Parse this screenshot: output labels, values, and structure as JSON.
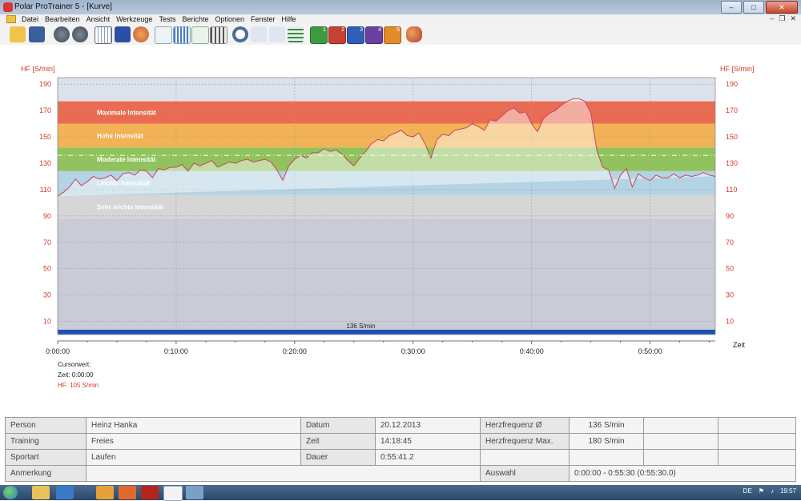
{
  "window": {
    "title": "Polar ProTrainer 5 - [Kurve]"
  },
  "window_controls": {
    "minimize": "–",
    "maximize": "□",
    "close": "✕"
  },
  "menu": [
    "Datei",
    "Bearbeiten",
    "Ansicht",
    "Werkzeuge",
    "Tests",
    "Berichte",
    "Optionen",
    "Fenster",
    "Hilfe"
  ],
  "mdi_controls": {
    "minimize": "–",
    "restore": "❐",
    "close": "✕"
  },
  "toolbar": {
    "icons": [
      "open-folder-icon",
      "save-icon",
      "connect-icon",
      "sync-icon",
      "calendar-icon",
      "book-icon",
      "user-icon",
      "curve-icon",
      "bar-chart-icon",
      "percent-icon",
      "columns-icon",
      "zoom-icon",
      "scale-icon",
      "marker-icon",
      "laps-icon",
      "report-1-icon",
      "report-2-icon",
      "report-3-icon",
      "report-4-icon",
      "report-5-icon",
      "people-icon"
    ],
    "report_numbers": [
      "1",
      "2",
      "3",
      "4",
      "5"
    ]
  },
  "chart_data": {
    "type": "area",
    "y_axis_label_left": "HF [S/min]",
    "y_axis_label_right": "HF [S/min]",
    "x_axis_label": "Zeit",
    "y_ticks": [
      10,
      30,
      50,
      70,
      90,
      110,
      130,
      150,
      170,
      190
    ],
    "ylim": [
      0,
      195
    ],
    "x_ticks": [
      "0:00:00",
      "0:10:00",
      "0:20:00",
      "0:30:00",
      "0:40:00",
      "0:50:00"
    ],
    "xlim_minutes": [
      0,
      55.5
    ],
    "average_line_label": "136 S/min",
    "average": 136,
    "zones": [
      {
        "name": "Maximale Intensität",
        "lower": 160,
        "upper": 177,
        "color": "#ea6a52"
      },
      {
        "name": "Hohe Intensität",
        "lower": 142,
        "upper": 160,
        "color": "#f2b255"
      },
      {
        "name": "Moderate Intensität",
        "lower": 124,
        "upper": 142,
        "color": "#90c35b"
      },
      {
        "name": "Leichte Intensität",
        "lower": 106,
        "upper": 124,
        "color": "#b4d3e4"
      },
      {
        "name": "Sehr leichte Intensität",
        "lower": 88,
        "upper": 106,
        "color": "#d6d6d6"
      }
    ],
    "series": [
      {
        "x_minutes": [
          0,
          0.5,
          1,
          1.5,
          2,
          2.5,
          3,
          3.5,
          4,
          4.5,
          5,
          5.5,
          6,
          6.5,
          7,
          7.5,
          8,
          8.5,
          9,
          9.5,
          10,
          10.5,
          11,
          11.5,
          12,
          12.5,
          13,
          13.5,
          14,
          14.5,
          15,
          15.5,
          16,
          16.5,
          17,
          17.5,
          18,
          18.5,
          19,
          19.5,
          20,
          20.5,
          21,
          21.5,
          22,
          22.5,
          23,
          23.5,
          24,
          24.5,
          25,
          25.5,
          26,
          26.5,
          27,
          27.5,
          28,
          28.5,
          29,
          29.5,
          30,
          30.5,
          31,
          31.5,
          32,
          32.5,
          33,
          33.5,
          34,
          34.5,
          35,
          35.5,
          36,
          36.5,
          37,
          37.5,
          38,
          38.5,
          39,
          39.5,
          40,
          40.5,
          41,
          41.5,
          42,
          42.5,
          43,
          43.5,
          44,
          44.5,
          45,
          45.5,
          46,
          46.5,
          47,
          47.5,
          48,
          48.5,
          49,
          49.5,
          50,
          50.5,
          51,
          51.5,
          52,
          52.5,
          53,
          53.5,
          54,
          54.5,
          55,
          55.5
        ],
        "hr": [
          105,
          108,
          112,
          118,
          113,
          116,
          120,
          118,
          119,
          121,
          117,
          122,
          123,
          121,
          125,
          124,
          119,
          126,
          125,
          127,
          127,
          129,
          124,
          130,
          128,
          130,
          132,
          127,
          129,
          131,
          130,
          132,
          133,
          131,
          132,
          133,
          131,
          125,
          117,
          128,
          133,
          136,
          134,
          138,
          138,
          141,
          139,
          140,
          137,
          132,
          128,
          134,
          139,
          145,
          148,
          147,
          151,
          153,
          155,
          151,
          150,
          153,
          145,
          134,
          148,
          152,
          151,
          155,
          156,
          157,
          160,
          158,
          155,
          163,
          162,
          166,
          170,
          172,
          168,
          169,
          160,
          154,
          164,
          168,
          170,
          174,
          177,
          179,
          179,
          177,
          168,
          140,
          127,
          125,
          111,
          121,
          126,
          112,
          122,
          119,
          117,
          121,
          119,
          119,
          122,
          119,
          121,
          120,
          121,
          123,
          121,
          120,
          122,
          120,
          122,
          125
        ]
      }
    ]
  },
  "cursor_info": {
    "heading": "Cursorwert:",
    "time": "Zeit: 0:00:00",
    "hr": "HF: 105 S/min"
  },
  "info_table": [
    [
      "Person",
      "Heinz Hanka",
      "Datum",
      "20.12.2013",
      "Herzfrequenz Ø",
      "136 S/min",
      "",
      ""
    ],
    [
      "Training",
      "Freies",
      "Zeit",
      "14:18:45",
      "Herzfrequenz Max.",
      "180 S/min",
      "",
      ""
    ],
    [
      "Sportart",
      "Laufen",
      "Dauer",
      "0:55:41.2",
      "",
      "",
      "",
      ""
    ],
    [
      "Anmerkung",
      "",
      "",
      "",
      "Auswahl",
      "0:00:00 - 0:55:30 (0:55:30.0)",
      "",
      ""
    ]
  ],
  "taskbar": {
    "language": "DE",
    "clock": "19:57",
    "apps": [
      "explorer-icon",
      "media-player-icon",
      "outlook-icon",
      "firefox-icon",
      "acrobat-icon",
      "polar-icon",
      "network-icon"
    ]
  },
  "colors": {
    "grid_bg": "#dde1e9",
    "lower_bg": "#c9ccd7",
    "line": "#c8435a",
    "axis_text": "#d23b2b",
    "avg_bar": "#1f4fb5"
  }
}
